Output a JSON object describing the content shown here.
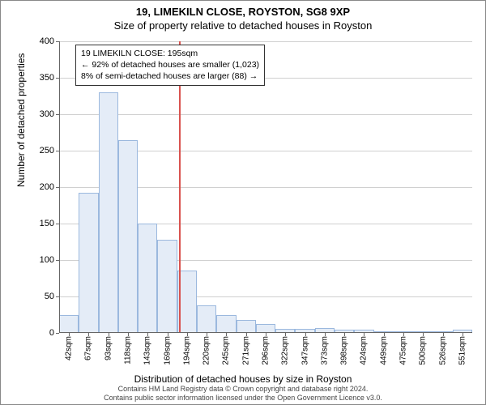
{
  "header": {
    "address": "19, LIMEKILN CLOSE, ROYSTON, SG8 9XP",
    "subtitle": "Size of property relative to detached houses in Royston"
  },
  "chart": {
    "type": "histogram",
    "ylabel": "Number of detached properties",
    "xlabel": "Distribution of detached houses by size in Royston",
    "ylim": [
      0,
      400
    ],
    "ytick_step": 50,
    "yticks": [
      0,
      50,
      100,
      150,
      200,
      250,
      300,
      350,
      400
    ],
    "categories": [
      "42sqm",
      "67sqm",
      "93sqm",
      "118sqm",
      "143sqm",
      "169sqm",
      "194sqm",
      "220sqm",
      "245sqm",
      "271sqm",
      "296sqm",
      "322sqm",
      "347sqm",
      "373sqm",
      "398sqm",
      "424sqm",
      "449sqm",
      "475sqm",
      "500sqm",
      "526sqm",
      "551sqm"
    ],
    "values": [
      25,
      192,
      330,
      265,
      150,
      128,
      86,
      38,
      25,
      18,
      12,
      6,
      6,
      7,
      4,
      4,
      2,
      0,
      2,
      2,
      4
    ],
    "bar_fill": "#e4ecf7",
    "bar_border": "#9bb8de",
    "grid_color": "#d0d0d0",
    "background_color": "#ffffff",
    "marker": {
      "position_index": 6.1,
      "color": "#d9534f"
    },
    "info_box": {
      "line1": "19 LIMEKILN CLOSE: 195sqm",
      "line2": "← 92% of detached houses are smaller (1,023)",
      "line3": "8% of semi-detached houses are larger (88) →"
    },
    "title_fontsize": 13,
    "label_fontsize": 12,
    "tick_fontsize": 11
  },
  "footer": {
    "line1": "Contains HM Land Registry data © Crown copyright and database right 2024.",
    "line2": "Contains public sector information licensed under the Open Government Licence v3.0."
  }
}
